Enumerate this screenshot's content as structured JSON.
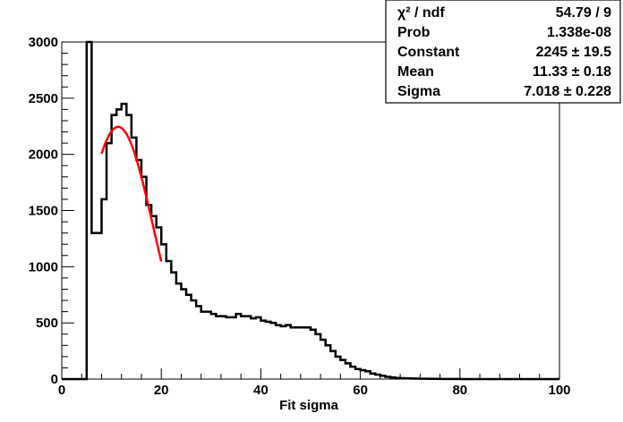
{
  "chart_data": {
    "type": "histogram",
    "xlabel": "Fit sigma",
    "ylabel": "",
    "xlim": [
      0,
      100
    ],
    "ylim": [
      0,
      3000
    ],
    "x_ticks": [
      0,
      20,
      40,
      60,
      80,
      100
    ],
    "y_ticks": [
      0,
      500,
      1000,
      1500,
      2000,
      2500,
      3000
    ],
    "grid": false,
    "bin_width": 1,
    "series": [
      {
        "kind": "histogram",
        "color": "#000000",
        "x_start": 0,
        "values": [
          0,
          0,
          0,
          0,
          0,
          3000,
          1300,
          1300,
          1600,
          2100,
          2350,
          2400,
          2450,
          2350,
          2150,
          1950,
          1800,
          1550,
          1450,
          1350,
          1200,
          1050,
          950,
          850,
          800,
          750,
          700,
          650,
          600,
          600,
          580,
          560,
          560,
          550,
          550,
          580,
          560,
          560,
          540,
          550,
          520,
          510,
          500,
          480,
          470,
          480,
          460,
          460,
          460,
          460,
          440,
          400,
          350,
          300,
          250,
          200,
          170,
          140,
          110,
          90,
          80,
          70,
          50,
          40,
          30,
          20,
          15,
          10,
          8,
          6,
          5,
          4,
          3,
          3,
          2,
          2,
          1,
          1,
          1,
          1,
          0,
          0,
          0,
          0,
          0,
          0,
          0,
          0,
          0,
          0,
          0,
          0,
          0,
          0,
          0,
          0,
          0,
          0,
          0,
          0
        ]
      },
      {
        "kind": "gaussian-fit",
        "color": "#ff0000",
        "fit_range": [
          8,
          20
        ],
        "constant": 2245,
        "mean": 11.33,
        "sigma": 7.018
      }
    ],
    "stats_box": {
      "position": "top-right",
      "rows": [
        {
          "label": "χ² / ndf",
          "value": "54.79 / 9"
        },
        {
          "label": "Prob",
          "value": "1.338e-08"
        },
        {
          "label": "Constant",
          "value": "2245 ± 19.5"
        },
        {
          "label": "Mean",
          "value": "11.33 ± 0.18"
        },
        {
          "label": "Sigma",
          "value": "7.018 ± 0.228"
        }
      ]
    }
  }
}
